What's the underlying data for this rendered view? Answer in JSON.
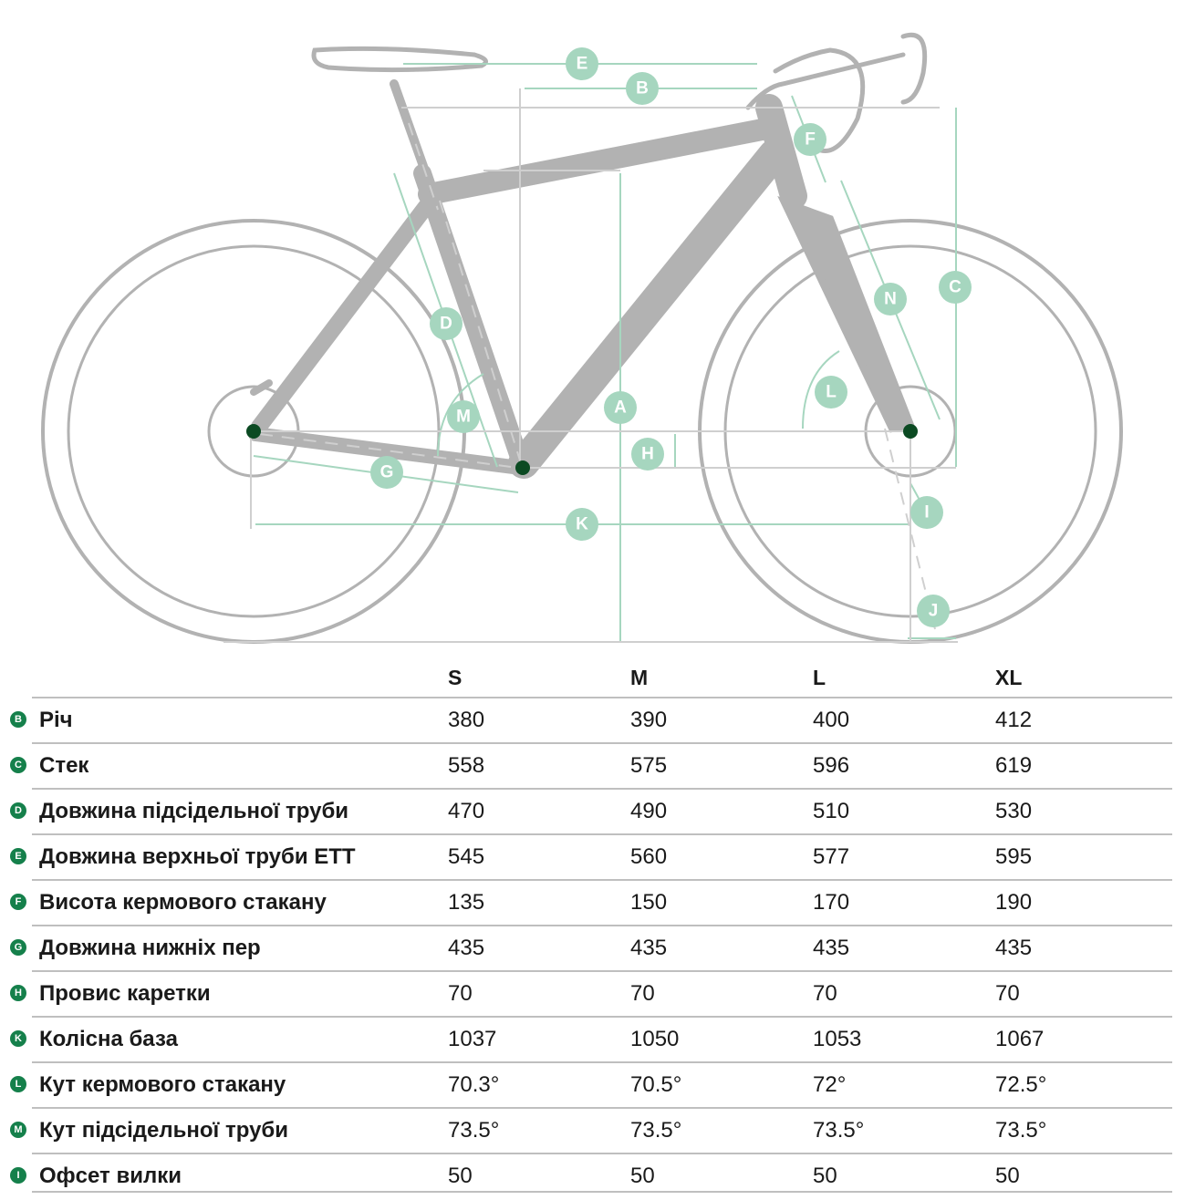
{
  "diagram": {
    "labels": [
      "B",
      "C",
      "D",
      "E",
      "F",
      "G",
      "H",
      "K",
      "L",
      "M",
      "N",
      "A",
      "I",
      "J"
    ],
    "colors": {
      "frame": "#b2b2b2",
      "measure": "#a6d6bf",
      "badge": "#a6d6bf",
      "hub": "#0b4a22"
    }
  },
  "table": {
    "columns": [
      "S",
      "M",
      "L",
      "XL"
    ],
    "rows": [
      {
        "marker": "B",
        "label": "Річ",
        "values": [
          "380",
          "390",
          "400",
          "412"
        ]
      },
      {
        "marker": "C",
        "label": "Стек",
        "values": [
          "558",
          "575",
          "596",
          "619"
        ]
      },
      {
        "marker": "D",
        "label": "Довжина підсідельної труби",
        "values": [
          "470",
          "490",
          "510",
          "530"
        ]
      },
      {
        "marker": "E",
        "label": "Довжина верхньої труби ETT",
        "values": [
          "545",
          "560",
          "577",
          "595"
        ]
      },
      {
        "marker": "F",
        "label": "Висота кермового стакану",
        "values": [
          "135",
          "150",
          "170",
          "190"
        ]
      },
      {
        "marker": "G",
        "label": "Довжина нижніх пер",
        "values": [
          "435",
          "435",
          "435",
          "435"
        ]
      },
      {
        "marker": "H",
        "label": "Провис каретки",
        "values": [
          "70",
          "70",
          "70",
          "70"
        ]
      },
      {
        "marker": "K",
        "label": "Колісна база",
        "values": [
          "1037",
          "1050",
          "1053",
          "1067"
        ]
      },
      {
        "marker": "L",
        "label": "Кут кермового стакану",
        "values": [
          "70.3°",
          "70.5°",
          "72°",
          "72.5°"
        ]
      },
      {
        "marker": "M",
        "label": "Кут підсідельної труби",
        "values": [
          "73.5°",
          "73.5°",
          "73.5°",
          "73.5°"
        ]
      },
      {
        "marker": "I",
        "label": "Офсет вилки",
        "values": [
          "50",
          "50",
          "50",
          "50"
        ]
      }
    ]
  }
}
